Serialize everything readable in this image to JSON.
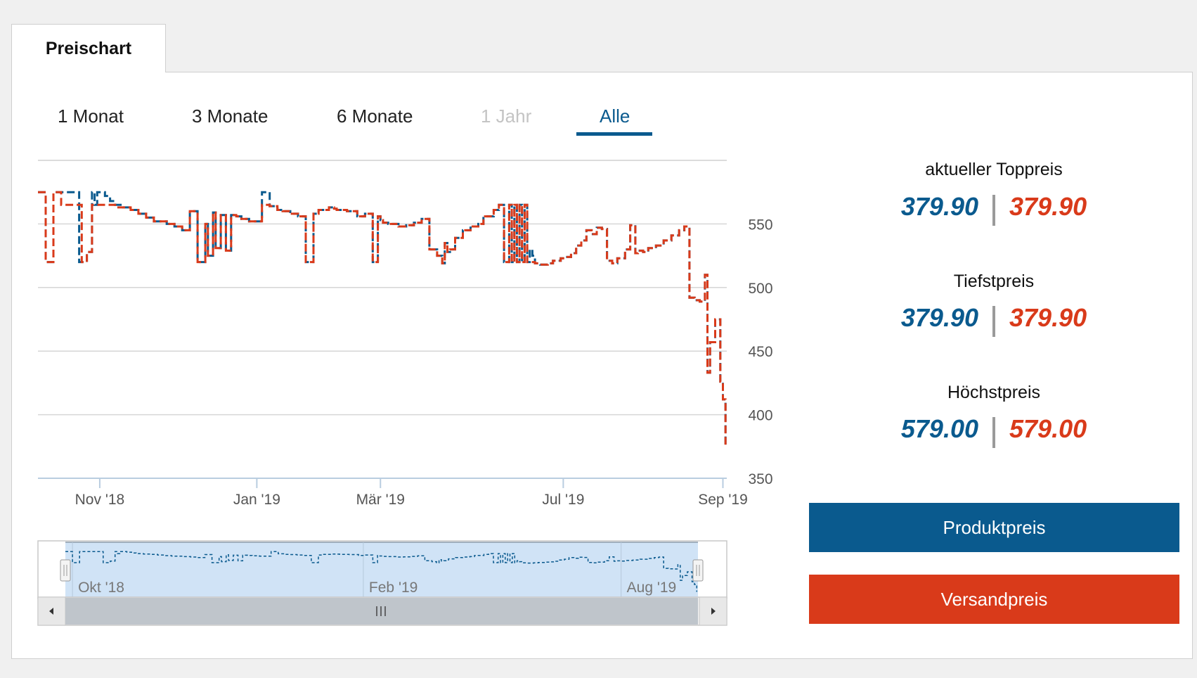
{
  "tab": {
    "label": "Preischart"
  },
  "ranges": [
    {
      "label": "1 Monat",
      "state": "normal"
    },
    {
      "label": "3 Monate",
      "state": "normal"
    },
    {
      "label": "6 Monate",
      "state": "normal"
    },
    {
      "label": "1 Jahr",
      "state": "disabled"
    },
    {
      "label": "Alle",
      "state": "active"
    }
  ],
  "stats": {
    "current": {
      "label": "aktueller Toppreis",
      "produkt": "379.90",
      "versand": "379.90"
    },
    "min": {
      "label": "Tiefstpreis",
      "produkt": "379.90",
      "versand": "379.90"
    },
    "max": {
      "label": "Höchstpreis",
      "produkt": "579.00",
      "versand": "579.00"
    }
  },
  "legend": {
    "produkt": {
      "label": "Produktpreis",
      "color": "#0a5a8e"
    },
    "versand": {
      "label": "Versandpreis",
      "color": "#d93a1a"
    }
  },
  "chart_data": {
    "type": "line",
    "title": "Preischart",
    "xlabel": "",
    "ylabel": "",
    "ylim": [
      350,
      600
    ],
    "y_ticks": [
      350,
      400,
      450,
      500,
      550
    ],
    "x_ticks": [
      "Nov '18",
      "Jan '19",
      "Mär '19",
      "Jul '19",
      "Sep '19"
    ],
    "x_tick_days": [
      21,
      82,
      130,
      201,
      263
    ],
    "x_range_days": [
      -3,
      264.5
    ],
    "navigator_ticks": [
      "Okt '18",
      "Feb '19",
      "Aug '19"
    ],
    "navigator_tick_days": [
      0,
      123,
      232
    ],
    "step": true,
    "series": [
      {
        "name": "Produktpreis",
        "color": "#0a5a8e",
        "x": [
          -3,
          0,
          3,
          5,
          9,
          13,
          16,
          18,
          19,
          20,
          22,
          23,
          25,
          27,
          30,
          33,
          36,
          39,
          42,
          47,
          50,
          53,
          56,
          59,
          62,
          63,
          65,
          66,
          68,
          70,
          72,
          74,
          76,
          79,
          84,
          87,
          90,
          92,
          95,
          98,
          101,
          104,
          106,
          110,
          112,
          113,
          117,
          121,
          124,
          127,
          129,
          130,
          131,
          133,
          137,
          140,
          143,
          146,
          149,
          152,
          154,
          155,
          156,
          157,
          159,
          162,
          165,
          168,
          170,
          174,
          176,
          178,
          180,
          181,
          182,
          183,
          184,
          185,
          186,
          187,
          188,
          189,
          190,
          192,
          195,
          197,
          200,
          202,
          204,
          206,
          208,
          210,
          212,
          214,
          216,
          218,
          220,
          222,
          225,
          227,
          229,
          230,
          232,
          234,
          237,
          240,
          243,
          246,
          248,
          250,
          252,
          254,
          256,
          257,
          258,
          260,
          262,
          263,
          264
        ],
        "y": [
          575,
          520,
          575,
          575,
          575,
          520,
          528,
          575,
          565,
          575,
          575,
          572,
          568,
          565,
          563,
          561,
          558,
          555,
          552,
          550,
          548,
          545,
          560,
          520,
          550,
          525,
          559,
          531,
          557,
          529,
          557,
          556,
          554,
          552,
          575,
          564,
          561,
          560,
          558,
          556,
          520,
          558,
          561,
          563,
          562,
          561,
          560,
          556,
          558,
          520,
          556,
          553,
          551,
          550,
          548,
          549,
          551,
          554,
          530,
          525,
          519,
          535,
          528,
          530,
          539,
          545,
          548,
          550,
          556,
          561,
          565,
          520,
          565,
          520,
          565,
          520,
          565,
          520,
          565,
          520,
          530,
          525,
          519,
          518,
          519,
          521,
          523,
          524,
          527,
          533,
          537,
          545,
          542,
          547,
          546,
          521,
          519,
          523,
          530,
          549,
          527,
          529,
          528,
          531,
          533,
          537,
          541,
          545,
          548,
          492,
          490,
          489,
          510,
          433,
          457,
          475,
          426,
          412,
          376
        ]
      },
      {
        "name": "Versandpreis",
        "color": "#d93a1a",
        "x": [
          -3,
          0,
          3,
          6,
          14,
          16,
          18,
          19,
          20,
          22,
          23,
          25,
          27,
          30,
          33,
          36,
          39,
          42,
          47,
          50,
          53,
          56,
          59,
          62,
          63,
          65,
          66,
          68,
          70,
          72,
          74,
          76,
          79,
          84,
          87,
          90,
          92,
          95,
          98,
          101,
          104,
          106,
          110,
          112,
          113,
          117,
          121,
          124,
          127,
          129,
          130,
          131,
          133,
          137,
          140,
          143,
          146,
          149,
          152,
          154,
          155,
          156,
          157,
          159,
          162,
          165,
          168,
          170,
          174,
          176,
          178,
          180,
          181,
          182,
          183,
          184,
          185,
          186,
          187,
          188,
          189,
          190,
          192,
          195,
          197,
          200,
          202,
          204,
          206,
          208,
          210,
          212,
          214,
          216,
          218,
          220,
          222,
          225,
          227,
          229,
          230,
          232,
          234,
          237,
          240,
          243,
          246,
          248,
          250,
          252,
          254,
          256,
          257,
          258,
          260,
          262,
          263,
          264
        ],
        "y": [
          575,
          520,
          575,
          565,
          520,
          528,
          565,
          565,
          565,
          565,
          565,
          565,
          563,
          563,
          561,
          558,
          555,
          552,
          550,
          548,
          545,
          560,
          520,
          550,
          525,
          559,
          531,
          557,
          529,
          557,
          556,
          554,
          552,
          565,
          564,
          561,
          560,
          558,
          556,
          520,
          558,
          561,
          563,
          562,
          561,
          560,
          556,
          558,
          520,
          556,
          553,
          551,
          550,
          548,
          549,
          551,
          554,
          530,
          525,
          519,
          535,
          528,
          530,
          539,
          545,
          548,
          550,
          556,
          561,
          565,
          520,
          565,
          520,
          565,
          520,
          565,
          520,
          565,
          520,
          520,
          520,
          519,
          518,
          519,
          521,
          523,
          524,
          527,
          533,
          537,
          545,
          542,
          547,
          546,
          521,
          519,
          523,
          530,
          549,
          527,
          529,
          528,
          531,
          533,
          537,
          541,
          545,
          548,
          492,
          490,
          489,
          510,
          433,
          457,
          475,
          426,
          412,
          376
        ]
      }
    ]
  }
}
